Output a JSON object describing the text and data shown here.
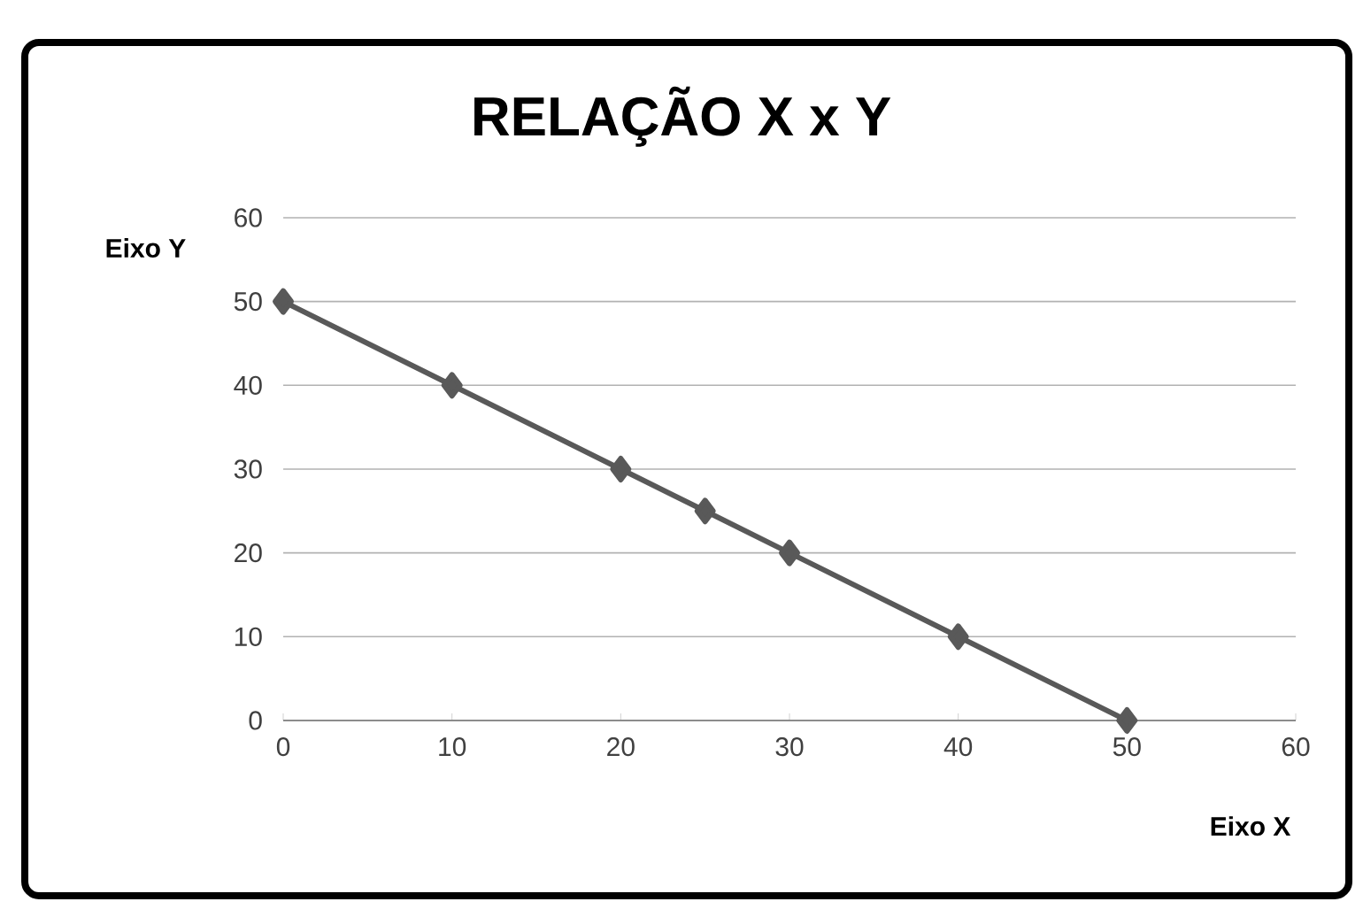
{
  "chart_data": {
    "type": "line",
    "title": "RELAÇÃO X x Y",
    "xlabel": "Eixo X",
    "ylabel": "Eixo Y",
    "x": [
      0,
      10,
      20,
      25,
      30,
      40,
      50
    ],
    "series": [
      {
        "color": "#595959",
        "values": [
          50,
          40,
          30,
          25,
          20,
          10,
          0
        ]
      }
    ],
    "xlim": [
      0,
      60
    ],
    "ylim": [
      0,
      60
    ],
    "xticks": [
      0,
      10,
      20,
      30,
      40,
      50,
      60
    ],
    "yticks": [
      0,
      10,
      20,
      30,
      40,
      50,
      60
    ],
    "grid": "y",
    "marker": "diamond",
    "line_style": "solid"
  }
}
